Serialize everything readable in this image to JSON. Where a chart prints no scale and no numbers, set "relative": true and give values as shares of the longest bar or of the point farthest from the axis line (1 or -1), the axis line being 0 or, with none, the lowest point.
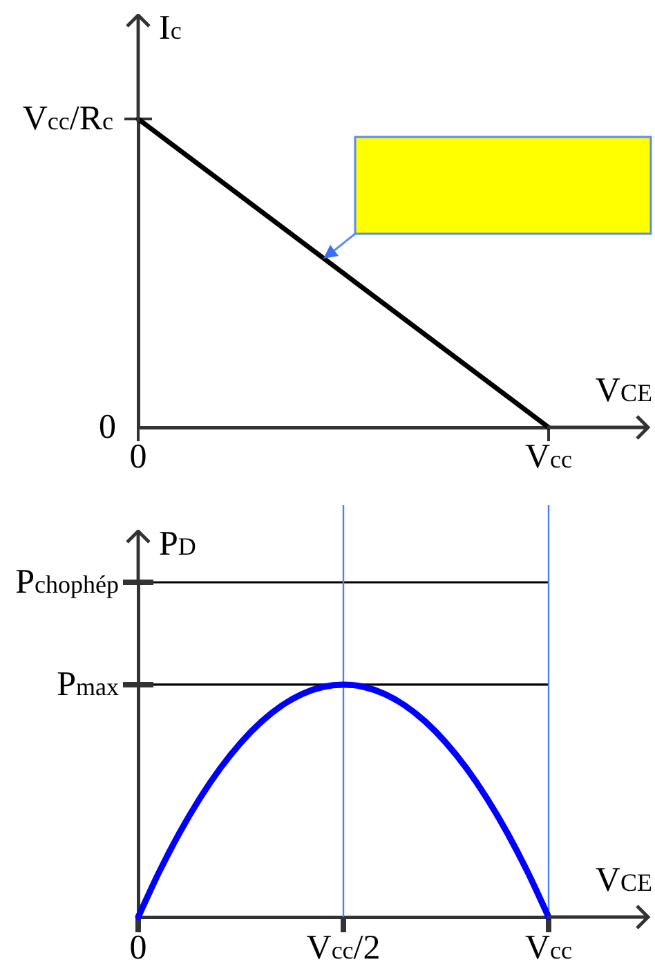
{
  "chart_data": [
    {
      "type": "line",
      "relative": true,
      "xlabel": "V$_{CE}$",
      "ylabel": "I$_{c}$",
      "categories": [
        "0",
        "V$_{cc}$"
      ],
      "values": [
        1,
        0
      ],
      "color": "#000000",
      "marker": "none",
      "line_style": "solid",
      "annotations": [
        {
          "text": "V$_{cc}$/R$_{c}$",
          "x": "0",
          "y": 1
        },
        "0"
      ]
    },
    {
      "type": "line",
      "relative": true,
      "xlabel": "V$_{CE}$",
      "ylabel": "P$_{D}$",
      "categories": [
        "0",
        null,
        null,
        null,
        null,
        null,
        null,
        null,
        null,
        null,
        "V$_{cc}$/2",
        null,
        null,
        null,
        null,
        null,
        null,
        null,
        null,
        null,
        "V$_{cc}$"
      ],
      "values": [
        0,
        0.19,
        0.36,
        0.51,
        0.64,
        0.75,
        0.84,
        0.91,
        0.96,
        0.99,
        1,
        0.99,
        0.96,
        0.91,
        0.84,
        0.75,
        0.64,
        0.51,
        0.36,
        0.19,
        0
      ],
      "color": "#0000ff",
      "marker": "none",
      "line_style": "solid",
      "ref_lines": [
        {
          "axis": "y",
          "value": 1.44,
          "label": "P$_{chophép}$",
          "color": "#000000"
        },
        {
          "axis": "y",
          "value": 1,
          "label": "P$_{max}$",
          "color": "#000000"
        },
        {
          "axis": "x",
          "value": "V$_{cc}$/2",
          "color": "#4a7ff5"
        },
        {
          "axis": "x",
          "value": "V$_{cc}$",
          "color": "#4a7ff5"
        }
      ]
    }
  ]
}
